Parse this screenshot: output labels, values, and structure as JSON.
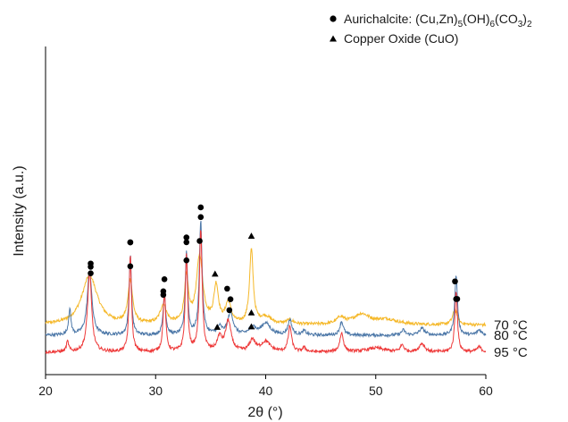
{
  "chart_data": {
    "type": "line",
    "xlabel": "2θ (°)",
    "ylabel": "Intensity (a.u.)",
    "xlim": [
      20,
      60
    ],
    "x_ticks": [
      20,
      30,
      40,
      50,
      60
    ],
    "y_ticks_shown": false,
    "grid": false,
    "legend": {
      "placement": "top-right",
      "entries": [
        {
          "marker": "circle",
          "label": "Aurichalcite: (Cu,Zn)5(OH)6(CO3)2",
          "parts": [
            "Aurichalcite: (Cu,Zn)",
            "5",
            "(OH)",
            "6",
            "(CO",
            "3",
            ")",
            "2"
          ]
        },
        {
          "marker": "triangle",
          "label": "Copper Oxide (CuO)"
        }
      ]
    },
    "series": [
      {
        "name": "70 °C",
        "color": "#f5b829",
        "base": 0.8,
        "peaks": [
          [
            24.0,
            1.45,
            0.85
          ],
          [
            27.7,
            1.27,
            0.25
          ],
          [
            30.7,
            0.55,
            0.35
          ],
          [
            32.8,
            1.33,
            0.22
          ],
          [
            34.0,
            2.0,
            0.35
          ],
          [
            35.5,
            1.1,
            0.25
          ],
          [
            36.6,
            0.62,
            0.3
          ],
          [
            38.7,
            2.17,
            0.2
          ],
          [
            40.0,
            0.22,
            0.6
          ],
          [
            42.2,
            0.12,
            0.4
          ],
          [
            46.8,
            0.2,
            0.4
          ],
          [
            48.7,
            0.3,
            0.9
          ],
          [
            51.0,
            0.15,
            1.2
          ],
          [
            57.2,
            0.45,
            0.25
          ]
        ],
        "markers": [
          {
            "type": "circle",
            "x": 24.1
          },
          {
            "type": "circle",
            "x": 27.7
          },
          {
            "type": "circle",
            "x": 30.7
          },
          {
            "type": "circle",
            "x": 32.8
          },
          {
            "type": "circle",
            "x": 34.0
          },
          {
            "type": "triangle",
            "x": 35.4
          },
          {
            "type": "circle",
            "x": 36.5
          },
          {
            "type": "triangle",
            "x": 38.7
          },
          {
            "type": "circle",
            "x": 57.3
          }
        ]
      },
      {
        "name": "80 °C",
        "color": "#4d78a8",
        "base": 0.5,
        "peaks": [
          [
            22.2,
            0.75,
            0.13
          ],
          [
            24.0,
            1.9,
            0.25
          ],
          [
            27.7,
            2.35,
            0.13
          ],
          [
            30.8,
            1.2,
            0.14
          ],
          [
            32.8,
            2.45,
            0.13
          ],
          [
            34.1,
            3.35,
            0.15
          ],
          [
            35.8,
            0.22,
            0.25
          ],
          [
            36.8,
            0.65,
            0.3
          ],
          [
            38.8,
            0.25,
            0.3
          ],
          [
            40.0,
            0.35,
            0.5
          ],
          [
            42.2,
            0.45,
            0.2
          ],
          [
            43.5,
            0.12,
            0.2
          ],
          [
            46.9,
            0.4,
            0.2
          ],
          [
            52.5,
            0.15,
            0.2
          ],
          [
            54.2,
            0.2,
            0.3
          ],
          [
            57.3,
            1.75,
            0.15
          ],
          [
            59.4,
            0.15,
            0.25
          ]
        ],
        "markers": [
          {
            "type": "circle",
            "x": 24.1
          },
          {
            "type": "circle",
            "x": 27.7
          },
          {
            "type": "circle",
            "x": 30.7
          },
          {
            "type": "circle",
            "x": 32.8
          },
          {
            "type": "circle",
            "x": 34.1
          },
          {
            "type": "circle",
            "x": 36.8
          },
          {
            "type": "triangle",
            "x": 38.7
          },
          {
            "type": "circle",
            "x": 57.2
          }
        ]
      },
      {
        "name": "95 °C",
        "color": "#ee3a3a",
        "base": 0.0,
        "peaks": [
          [
            22.0,
            0.3,
            0.13
          ],
          [
            24.0,
            2.35,
            0.22
          ],
          [
            27.7,
            2.85,
            0.13
          ],
          [
            30.8,
            1.75,
            0.14
          ],
          [
            32.8,
            2.8,
            0.13
          ],
          [
            34.1,
            3.55,
            0.15
          ],
          [
            35.8,
            0.4,
            0.25
          ],
          [
            36.6,
            0.9,
            0.3
          ],
          [
            38.8,
            0.35,
            0.3
          ],
          [
            40.0,
            0.3,
            0.5
          ],
          [
            42.2,
            0.75,
            0.18
          ],
          [
            43.5,
            0.12,
            0.2
          ],
          [
            46.9,
            0.55,
            0.2
          ],
          [
            50.0,
            0.12,
            1.0
          ],
          [
            52.4,
            0.2,
            0.2
          ],
          [
            54.2,
            0.25,
            0.3
          ],
          [
            57.3,
            1.8,
            0.14
          ],
          [
            59.4,
            0.15,
            0.25
          ]
        ],
        "markers": [
          {
            "type": "circle",
            "x": 24.1
          },
          {
            "type": "circle",
            "x": 27.7
          },
          {
            "type": "circle",
            "x": 30.8
          },
          {
            "type": "circle",
            "x": 32.8
          },
          {
            "type": "circle",
            "x": 34.1
          },
          {
            "type": "triangle",
            "x": 35.6
          },
          {
            "type": "circle",
            "x": 36.7
          },
          {
            "type": "triangle",
            "x": 38.7
          },
          {
            "type": "circle",
            "x": 57.4
          }
        ]
      }
    ]
  }
}
